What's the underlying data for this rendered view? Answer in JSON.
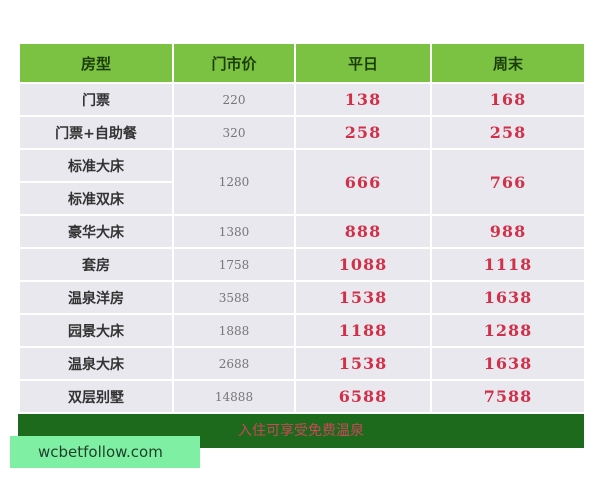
{
  "table": {
    "header": [
      "房型",
      "门市价",
      "平日",
      "周末"
    ],
    "rows": [
      {
        "rooms": [
          "门票"
        ],
        "price": 220,
        "weekday": 138,
        "weekend": 168
      },
      {
        "rooms": [
          "门票+自助餐"
        ],
        "price": 320,
        "weekday": 258,
        "weekend": 258
      },
      {
        "rooms": [
          "标准大床",
          "标准双床"
        ],
        "price": 1280,
        "weekday": 666,
        "weekend": 766
      },
      {
        "rooms": [
          "豪华大床"
        ],
        "price": 1380,
        "weekday": 888,
        "weekend": 988
      },
      {
        "rooms": [
          "套房"
        ],
        "price": 1758,
        "weekday": 1088,
        "weekend": 1118
      },
      {
        "rooms": [
          "温泉洋房"
        ],
        "price": 3588,
        "weekday": 1538,
        "weekend": 1638
      },
      {
        "rooms": [
          "园景大床"
        ],
        "price": 1888,
        "weekday": 1188,
        "weekend": 1288
      },
      {
        "rooms": [
          "温泉大床"
        ],
        "price": 2688,
        "weekday": 1538,
        "weekend": 1638
      },
      {
        "rooms": [
          "双层别墅"
        ],
        "price": 14888,
        "weekday": 6588,
        "weekend": 7588
      }
    ],
    "footer": "入住可享受免费温泉"
  },
  "watermark": "wcbetfollow.com"
}
